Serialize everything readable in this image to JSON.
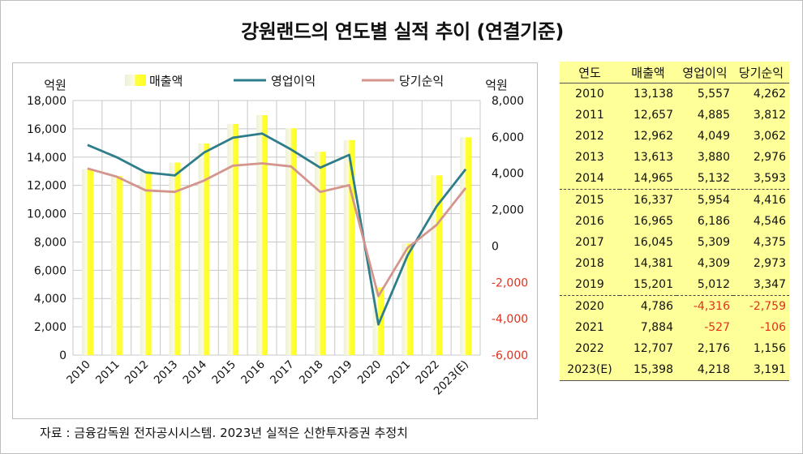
{
  "title": "강원랜드의 연도별 실적 추이 (연결기준)",
  "source": "자료 : 금융감독원 전자공시시스템. 2023년 실적은 신한투자증권 추정치",
  "chart_data": {
    "type": "bar",
    "categories": [
      "2010",
      "2011",
      "2012",
      "2013",
      "2014",
      "2015",
      "2016",
      "2017",
      "2018",
      "2019",
      "2020",
      "2021",
      "2022",
      "2023(E)"
    ],
    "left_unit": "억원",
    "right_unit": "억원",
    "left_axis": {
      "min": 0,
      "max": 18000,
      "step": 2000,
      "ticks": [
        "0",
        "2,000",
        "4,000",
        "6,000",
        "8,000",
        "10,000",
        "12,000",
        "14,000",
        "16,000",
        "18,000"
      ]
    },
    "right_axis": {
      "min": -6000,
      "max": 8000,
      "step": 2000,
      "ticks": [
        "-6,000",
        "-4,000",
        "-2,000",
        "0",
        "2,000",
        "4,000",
        "6,000",
        "8,000"
      ]
    },
    "grid": true,
    "legend_position": "top",
    "series": [
      {
        "name": "매출액",
        "kind": "bar",
        "axis": "left",
        "color": "#ffff33",
        "values": [
          13138,
          12657,
          12962,
          13613,
          14965,
          16337,
          16965,
          16045,
          14381,
          15201,
          4786,
          7884,
          12707,
          15398
        ]
      },
      {
        "name": "영업이익",
        "kind": "line",
        "axis": "right",
        "color": "#2e7d8a",
        "values": [
          5557,
          4885,
          4049,
          3880,
          5132,
          5954,
          6186,
          5309,
          4309,
          5012,
          -4316,
          -527,
          2176,
          4218
        ]
      },
      {
        "name": "당기순익",
        "kind": "line",
        "axis": "right",
        "color": "#d4958e",
        "values": [
          4262,
          3812,
          3062,
          2976,
          3593,
          4416,
          4546,
          4375,
          2973,
          3347,
          -2759,
          -106,
          1156,
          3191
        ]
      }
    ]
  },
  "table": {
    "headers": [
      "연도",
      "매출액",
      "영업이익",
      "당기순익"
    ],
    "rows": [
      [
        "2010",
        "13,138",
        "5,557",
        "4,262"
      ],
      [
        "2011",
        "12,657",
        "4,885",
        "3,812"
      ],
      [
        "2012",
        "12,962",
        "4,049",
        "3,062"
      ],
      [
        "2013",
        "13,613",
        "3,880",
        "2,976"
      ],
      [
        "2014",
        "14,965",
        "5,132",
        "3,593"
      ],
      [
        "2015",
        "16,337",
        "5,954",
        "4,416"
      ],
      [
        "2016",
        "16,965",
        "6,186",
        "4,546"
      ],
      [
        "2017",
        "16,045",
        "5,309",
        "4,375"
      ],
      [
        "2018",
        "14,381",
        "4,309",
        "2,973"
      ],
      [
        "2019",
        "15,201",
        "5,012",
        "3,347"
      ],
      [
        "2020",
        "4,786",
        "-4,316",
        "-2,759"
      ],
      [
        "2021",
        "7,884",
        "-527",
        "-106"
      ],
      [
        "2022",
        "12,707",
        "2,176",
        "1,156"
      ],
      [
        "2023(E)",
        "15,398",
        "4,218",
        "3,191"
      ]
    ],
    "group_end_rows": [
      4,
      9
    ],
    "negative_color": "#e0301e",
    "background": "#ffff99"
  }
}
